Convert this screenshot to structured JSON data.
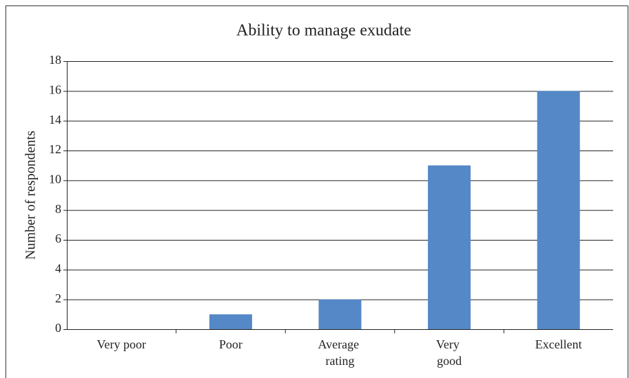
{
  "chart_data": {
    "type": "bar",
    "title": "Ability to manage exudate",
    "y_label": "Number of respondents",
    "categories": [
      "Very poor",
      "Poor",
      "Average rating",
      "Very good",
      "Excellent"
    ],
    "values": [
      0,
      1,
      2,
      11,
      16
    ],
    "color": "#5588c6",
    "ylim": [
      0,
      18
    ],
    "yticks": [
      0,
      2,
      4,
      6,
      8,
      10,
      12,
      14,
      16,
      18
    ],
    "grid": true
  }
}
